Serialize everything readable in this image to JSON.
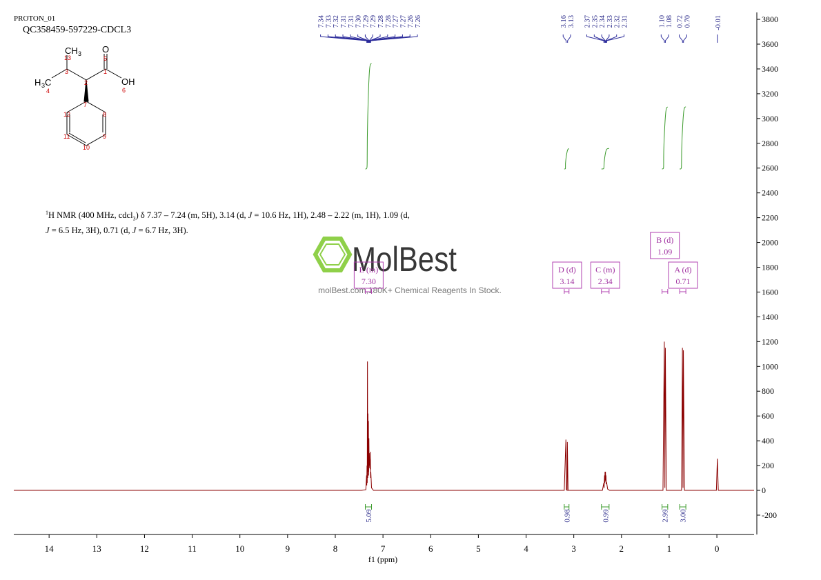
{
  "header": {
    "experiment": "PROTON_01",
    "sample": "QC358459-597229-CDCL3"
  },
  "molecule": {
    "atoms": [
      "CH",
      "3",
      "13",
      "3",
      "O",
      "5",
      "1",
      "H",
      "3",
      "C",
      "4",
      "2",
      "OH",
      "6",
      "7",
      "12",
      "8",
      "11",
      "9",
      "10"
    ]
  },
  "description": [
    "1",
    "H NMR (400 MHz, cdcl",
    "3",
    ") δ 7.37 – 7.24 (m, 5H), 3.14 (d, ",
    "J",
    " = 10.6 Hz, 1H), 2.48 – 2.22 (m, 1H), 1.09 (d,",
    "J",
    " = 6.5 Hz, 3H), 0.71 (d, ",
    "J",
    " = 6.7 Hz, 3H)."
  ],
  "watermark": {
    "brand": "MolBest",
    "tagline": "molBest.com,180K+ Chemical Reagents In Stock."
  },
  "chart_data": {
    "type": "line",
    "x_label": "f1 (ppm)",
    "color": "#8b0000",
    "xlim": [
      14.74,
      -0.78
    ],
    "xticks": [
      14,
      13,
      12,
      11,
      10,
      9,
      8,
      7,
      6,
      5,
      4,
      3,
      2,
      1,
      0
    ],
    "ylim": [
      -356,
      3856
    ],
    "yticks": [
      -200,
      0,
      200,
      400,
      600,
      800,
      1000,
      1200,
      1400,
      1600,
      1800,
      2000,
      2200,
      2400,
      2600,
      2800,
      3000,
      3200,
      3400,
      3600,
      3800
    ],
    "series": [
      {
        "x": [
          14.74,
          7.45,
          7.36,
          7.345,
          7.34,
          7.335,
          7.33,
          7.325,
          7.32,
          7.315,
          7.31,
          7.305,
          7.3,
          7.295,
          7.29,
          7.285,
          7.28,
          7.275,
          7.27,
          7.265,
          7.26,
          7.255,
          7.24,
          7.2,
          3.2,
          3.165,
          3.155,
          3.14,
          3.135,
          3.12,
          2.4,
          2.37,
          2.365,
          2.355,
          2.35,
          2.345,
          2.34,
          2.335,
          2.33,
          2.325,
          2.32,
          2.31,
          2.29,
          2.25,
          1.13,
          1.102,
          1.09,
          1.08,
          1.06,
          0.74,
          0.722,
          0.71,
          0.702,
          0.68,
          0.01,
          -0.01,
          -0.03,
          -0.78
        ],
        "values": [
          0,
          0,
          5,
          120,
          40,
          200,
          60,
          1040,
          100,
          620,
          150,
          560,
          120,
          420,
          200,
          300,
          180,
          250,
          170,
          310,
          100,
          150,
          20,
          0,
          0,
          410,
          5,
          0,
          390,
          0,
          0,
          60,
          20,
          120,
          60,
          150,
          80,
          150,
          70,
          120,
          50,
          60,
          10,
          0,
          0,
          1200,
          20,
          1150,
          0,
          0,
          1150,
          20,
          1130,
          0,
          0,
          256,
          0,
          0
        ]
      }
    ],
    "peak_groups": [
      [
        {
          "value": 7.34,
          "label": "7.34"
        },
        {
          "value": 7.33,
          "label": "7.33"
        },
        {
          "value": 7.32,
          "label": "7.32"
        },
        {
          "value": 7.31,
          "label": "7.31"
        },
        {
          "value": 7.31,
          "label": "7.31"
        },
        {
          "value": 7.3,
          "label": "7.30"
        },
        {
          "value": 7.29,
          "label": "7.29"
        },
        {
          "value": 7.29,
          "label": "7.29"
        },
        {
          "value": 7.28,
          "label": "7.28"
        },
        {
          "value": 7.28,
          "label": "7.28"
        },
        {
          "value": 7.27,
          "label": "7.27"
        },
        {
          "value": 7.27,
          "label": "7.27"
        },
        {
          "value": 7.26,
          "label": "7.26"
        },
        {
          "value": 7.26,
          "label": "7.26"
        }
      ],
      [
        {
          "value": 3.16,
          "label": "3.16"
        },
        {
          "value": 3.13,
          "label": "3.13"
        }
      ],
      [
        {
          "value": 2.37,
          "label": "2.37"
        },
        {
          "value": 2.35,
          "label": "2.35"
        },
        {
          "value": 2.34,
          "label": "2.34"
        },
        {
          "value": 2.33,
          "label": "2.33"
        },
        {
          "value": 2.32,
          "label": "2.32"
        },
        {
          "value": 2.31,
          "label": "2.31"
        }
      ],
      [
        {
          "value": 1.1,
          "label": "1.10"
        },
        {
          "value": 1.08,
          "label": "1.08"
        }
      ],
      [
        {
          "value": 0.72,
          "label": "0.72"
        },
        {
          "value": 0.7,
          "label": "0.70"
        }
      ],
      [
        {
          "value": -0.01,
          "label": "-0.01"
        }
      ]
    ],
    "multiplets": [
      {
        "name": "E (m)",
        "shift": {
          "value": 7.3,
          "label": "7.30"
        }
      },
      {
        "name": "D (d)",
        "shift": {
          "value": 3.14,
          "label": "3.14"
        }
      },
      {
        "name": "C (m)",
        "shift": {
          "value": 2.34,
          "label": "2.34"
        }
      },
      {
        "name": "B (d)",
        "shift": {
          "value": 1.09,
          "label": "1.09"
        }
      },
      {
        "name": "A (d)",
        "shift": {
          "value": 0.71,
          "label": "0.71"
        }
      }
    ],
    "integrals": [
      {
        "x": [
          7.37,
          7.24
        ],
        "value": {
          "value": 5.09,
          "label": "5.09"
        }
      },
      {
        "x": [
          3.2,
          3.1
        ],
        "value": {
          "value": 0.98,
          "label": "0.98"
        }
      },
      {
        "x": [
          2.42,
          2.26
        ],
        "value": {
          "value": 0.99,
          "label": "0.99"
        }
      },
      {
        "x": [
          1.15,
          1.03
        ],
        "value": {
          "value": 2.99,
          "label": "2.99"
        }
      },
      {
        "x": [
          0.78,
          0.65
        ],
        "value": {
          "value": 3.0,
          "label": "3.00"
        }
      }
    ]
  }
}
